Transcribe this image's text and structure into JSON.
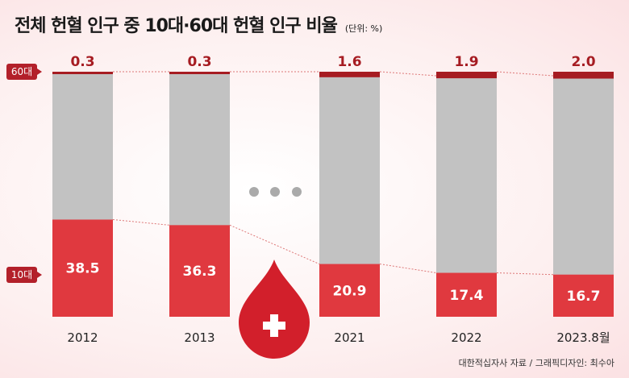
{
  "title": "전체 헌혈 인구 중 10대·60대 헌혈 인구 비율",
  "unit": "(단위: %)",
  "source": "대한적십자사 자료 / 그래픽디자인: 최수아",
  "colors": {
    "teen": "#e0393f",
    "sixties": "#a61c22",
    "rest": "#c2c2c2"
  },
  "chart_data": {
    "type": "bar",
    "stacked": true,
    "categories": [
      "2012",
      "2013",
      "2021",
      "2022",
      "2023.8월"
    ],
    "series": [
      {
        "name": "10대",
        "values": [
          38.5,
          36.3,
          20.9,
          17.4,
          16.7
        ]
      },
      {
        "name": "60대",
        "values": [
          0.3,
          0.3,
          1.6,
          1.9,
          2.0
        ]
      }
    ],
    "ylim": [
      0,
      100
    ],
    "gap_marker": "• • •",
    "icon": "blood-drop-with-cross"
  }
}
